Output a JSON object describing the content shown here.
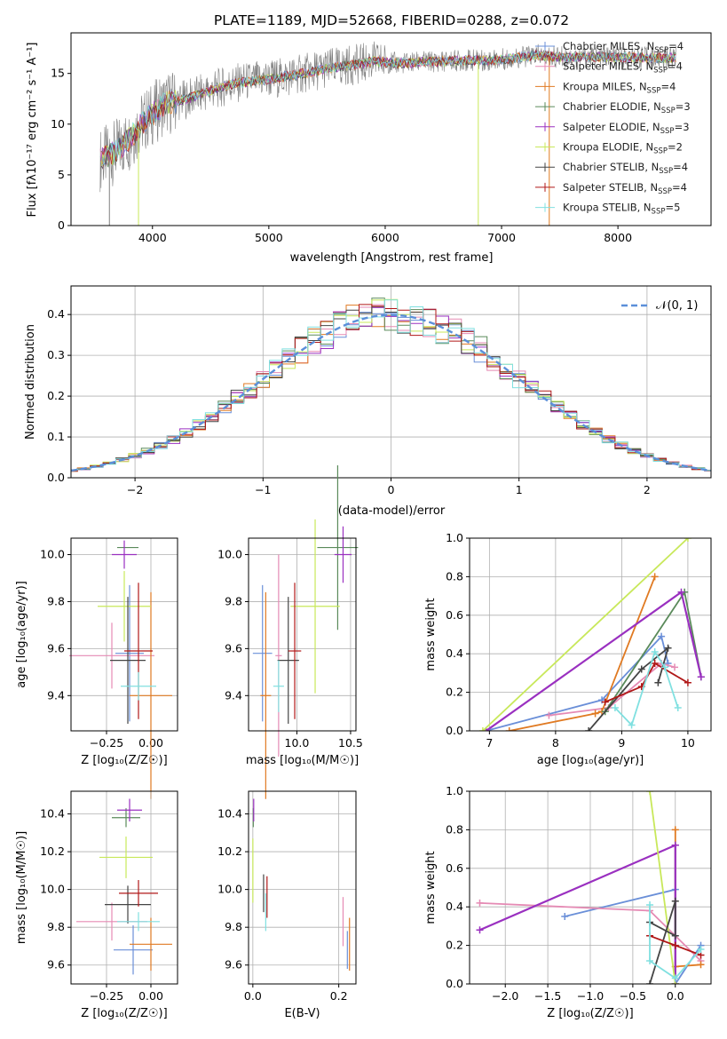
{
  "title": "PLATE=1189, MJD=52668, FIBERID=0288, z=0.072",
  "colors": {
    "Chabrier MILES": "#6a8fd8",
    "Salpeter MILES": "#e58ab4",
    "Kroupa MILES": "#e07a22",
    "Chabrier ELODIE": "#5a8a5a",
    "Salpeter ELODIE": "#9a30c0",
    "Kroupa ELODIE": "#c8e85a",
    "Chabrier STELIB": "#444444",
    "Salpeter STELIB": "#b01818",
    "Kroupa STELIB": "#80e0e0",
    "data": "#7f7f7f"
  },
  "chart_data": [
    {
      "type": "line",
      "name": "spectrum",
      "title": "PLATE=1189, MJD=52668, FIBERID=0288, z=0.072",
      "xlabel": "wavelength [Angstrom, rest frame]",
      "ylabel": "Flux [fλ10⁻¹⁷ erg cm⁻² s⁻¹ A⁻¹]",
      "xlim": [
        3300,
        8800
      ],
      "ylim": [
        0,
        19
      ],
      "xticks": [
        "4000",
        "5000",
        "6000",
        "7000",
        "8000"
      ],
      "yticks": [
        "0",
        "5",
        "10",
        "15"
      ],
      "legend": [
        {
          "label": "Chabrier MILES, N",
          "sub": "SSP",
          "tail": "=4"
        },
        {
          "label": "Salpeter MILES, N",
          "sub": "SSP",
          "tail": "=4"
        },
        {
          "label": "Kroupa MILES, N",
          "sub": "SSP",
          "tail": "=4"
        },
        {
          "label": "Chabrier ELODIE, N",
          "sub": "SSP",
          "tail": "=3"
        },
        {
          "label": "Salpeter ELODIE, N",
          "sub": "SSP",
          "tail": "=3"
        },
        {
          "label": "Kroupa ELODIE, N",
          "sub": "SSP",
          "tail": "=2"
        },
        {
          "label": "Chabrier STELIB, N",
          "sub": "SSP",
          "tail": "=4"
        },
        {
          "label": "Salpeter STELIB, N",
          "sub": "SSP",
          "tail": "=4"
        },
        {
          "label": "Kroupa STELIB, N",
          "sub": "SSP",
          "tail": "=5"
        }
      ],
      "continuum": [
        [
          3550,
          6.5
        ],
        [
          3650,
          7
        ],
        [
          3800,
          8.5
        ],
        [
          3900,
          10
        ],
        [
          4000,
          11
        ],
        [
          4100,
          12
        ],
        [
          4300,
          12.5
        ],
        [
          4500,
          13.3
        ],
        [
          4700,
          14
        ],
        [
          4900,
          14.3
        ],
        [
          5100,
          14.6
        ],
        [
          5300,
          15
        ],
        [
          5500,
          15.5
        ],
        [
          5700,
          15.8
        ],
        [
          5900,
          16.2
        ],
        [
          6100,
          16
        ],
        [
          6300,
          16.1
        ],
        [
          6500,
          16.2
        ],
        [
          6700,
          16.3
        ],
        [
          6900,
          16.3
        ],
        [
          7100,
          16.5
        ],
        [
          7300,
          16.8
        ],
        [
          7500,
          16.6
        ],
        [
          7800,
          16.6
        ],
        [
          8100,
          16.6
        ],
        [
          8400,
          16.5
        ],
        [
          8500,
          16.6
        ]
      ]
    },
    {
      "type": "line",
      "name": "residual-histogram",
      "xlabel": "(data-model)/error",
      "ylabel": "Normed distribution",
      "xlim": [
        -2.5,
        2.5
      ],
      "ylim": [
        0,
        0.47
      ],
      "xticks": [
        "−2",
        "−1",
        "0",
        "1",
        "2"
      ],
      "yticks": [
        "0.0",
        "0.1",
        "0.2",
        "0.3",
        "0.4"
      ],
      "legend": "𝒩(0, 1)",
      "series": [
        {
          "name": "𝒩(0, 1)",
          "mean": 0,
          "sigma": 1
        }
      ]
    },
    {
      "type": "scatter",
      "name": "age-vs-Z",
      "xlabel": "Z [log₁₀(Z/Z☉)]",
      "ylabel": "age  [log₁₀(age/yr)]",
      "xlim": [
        -0.45,
        0.15
      ],
      "ylim": [
        9.25,
        10.07
      ],
      "xticks": [
        -0.25,
        0.0
      ],
      "xticklabels": [
        "−0.25",
        "0.00"
      ],
      "yticks": [
        9.4,
        9.6,
        9.8,
        10.0
      ],
      "yticklabels": [
        "9.4",
        "9.6",
        "9.8",
        "10.0"
      ],
      "points": [
        {
          "model": "Chabrier MILES",
          "x": -0.12,
          "y": 9.58,
          "xerr": 0.08,
          "yerr": 0.29
        },
        {
          "model": "Salpeter MILES",
          "x": -0.22,
          "y": 9.57,
          "xerr": 0.24,
          "yerr": 0.14
        },
        {
          "model": "Kroupa MILES",
          "x": 0.0,
          "y": 9.4,
          "xerr": 0.12,
          "yerr": 0.44
        },
        {
          "model": "Chabrier ELODIE",
          "x": -0.13,
          "y": 10.03,
          "xerr": 0.06,
          "yerr": 0.0
        },
        {
          "model": "Salpeter ELODIE",
          "x": -0.15,
          "y": 10.0,
          "xerr": 0.07,
          "yerr": 0.06
        },
        {
          "model": "Kroupa ELODIE",
          "x": -0.15,
          "y": 9.78,
          "xerr": 0.15,
          "yerr": 0.15
        },
        {
          "model": "Chabrier STELIB",
          "x": -0.13,
          "y": 9.55,
          "xerr": 0.1,
          "yerr": 0.27
        },
        {
          "model": "Salpeter STELIB",
          "x": -0.07,
          "y": 9.59,
          "xerr": 0.08,
          "yerr": 0.29
        },
        {
          "model": "Kroupa STELIB",
          "x": -0.07,
          "y": 9.44,
          "xerr": 0.1,
          "yerr": 0.06
        }
      ]
    },
    {
      "type": "scatter",
      "name": "age-vs-mass",
      "xlabel": "mass [log₁₀(M/M☉)]",
      "xlim": [
        9.55,
        10.55
      ],
      "ylim": [
        9.25,
        10.07
      ],
      "xticks": [
        10.0,
        10.5
      ],
      "xticklabels": [
        "10.0",
        "10.5"
      ],
      "yticks": [
        9.4,
        9.6,
        9.8,
        10.0
      ],
      "yticklabels": [
        "9.4",
        "9.6",
        "9.8",
        "10.0"
      ],
      "points": [
        {
          "model": "Chabrier MILES",
          "x": 9.68,
          "y": 9.58,
          "xerr": 0.09,
          "yerr": 0.29
        },
        {
          "model": "Salpeter MILES",
          "x": 9.83,
          "y": 9.57,
          "xerr": 0.03,
          "yerr": 0.43
        },
        {
          "model": "Kroupa MILES",
          "x": 9.71,
          "y": 9.4,
          "xerr": 0.05,
          "yerr": 0.44
        },
        {
          "model": "Chabrier ELODIE",
          "x": 10.38,
          "y": 10.03,
          "xerr": 0.19,
          "yerr": 0.35
        },
        {
          "model": "Salpeter ELODIE",
          "x": 10.43,
          "y": 10.0,
          "xerr": 0.08,
          "yerr": 0.12
        },
        {
          "model": "Kroupa ELODIE",
          "x": 10.17,
          "y": 9.78,
          "xerr": 0.23,
          "yerr": 0.37
        },
        {
          "model": "Chabrier STELIB",
          "x": 9.92,
          "y": 9.55,
          "xerr": 0.1,
          "yerr": 0.27
        },
        {
          "model": "Salpeter STELIB",
          "x": 9.98,
          "y": 9.59,
          "xerr": 0.06,
          "yerr": 0.29
        },
        {
          "model": "Kroupa STELIB",
          "x": 9.83,
          "y": 9.44,
          "xerr": 0.05,
          "yerr": 0.11
        }
      ]
    },
    {
      "type": "line",
      "name": "mass-weight-vs-age",
      "xlabel": "age  [log₁₀(age/yr)]",
      "ylabel": "mass weight",
      "xlim": [
        6.7,
        10.35
      ],
      "ylim": [
        0,
        1
      ],
      "xticks": [
        7,
        8,
        9,
        10
      ],
      "xticklabels": [
        "7",
        "8",
        "9",
        "10"
      ],
      "yticks": [
        0,
        0.2,
        0.4,
        0.6,
        0.8,
        1.0
      ],
      "yticklabels": [
        "0.0",
        "0.2",
        "0.4",
        "0.6",
        "0.8",
        "1.0"
      ],
      "series": [
        {
          "model": "Chabrier MILES",
          "points": [
            [
              6.95,
              0
            ],
            [
              8.7,
              0.16
            ],
            [
              9.6,
              0.49
            ],
            [
              9.7,
              0.35
            ]
          ]
        },
        {
          "model": "Salpeter MILES",
          "points": [
            [
              7.9,
              0.08
            ],
            [
              8.8,
              0.12
            ],
            [
              9.6,
              0.35
            ],
            [
              9.8,
              0.33
            ]
          ]
        },
        {
          "model": "Kroupa MILES",
          "points": [
            [
              7.3,
              0
            ],
            [
              8.6,
              0.09
            ],
            [
              8.7,
              0.1
            ],
            [
              9.5,
              0.8
            ]
          ]
        },
        {
          "model": "Chabrier ELODIE",
          "points": [
            [
              8.75,
              0.1
            ],
            [
              9.95,
              0.72
            ],
            [
              10.2,
              0.28
            ]
          ]
        },
        {
          "model": "Salpeter ELODIE",
          "points": [
            [
              6.95,
              0
            ],
            [
              9.9,
              0.72
            ],
            [
              10.2,
              0.28
            ]
          ]
        },
        {
          "model": "Kroupa ELODIE",
          "points": [
            [
              6.9,
              0
            ],
            [
              10.0,
              1.0
            ]
          ]
        },
        {
          "model": "Chabrier STELIB",
          "points": [
            [
              8.5,
              0
            ],
            [
              9.3,
              0.32
            ],
            [
              9.7,
              0.43
            ],
            [
              9.55,
              0.25
            ]
          ]
        },
        {
          "model": "Salpeter STELIB",
          "points": [
            [
              8.75,
              0.15
            ],
            [
              9.3,
              0.23
            ],
            [
              9.5,
              0.35
            ],
            [
              10.0,
              0.25
            ]
          ]
        },
        {
          "model": "Kroupa STELIB",
          "points": [
            [
              8.9,
              0.12
            ],
            [
              9.15,
              0.03
            ],
            [
              9.5,
              0.41
            ],
            [
              9.65,
              0.33
            ],
            [
              9.85,
              0.12
            ]
          ]
        }
      ]
    },
    {
      "type": "scatter",
      "name": "mass-vs-Z",
      "xlabel": "Z [log₁₀(Z/Z☉)]",
      "ylabel": "mass [log₁₀(M/M☉)]",
      "xlim": [
        -0.45,
        0.15
      ],
      "ylim": [
        9.5,
        10.52
      ],
      "xticks": [
        -0.25,
        0.0
      ],
      "xticklabels": [
        "−0.25",
        "0.00"
      ],
      "yticks": [
        9.6,
        9.8,
        10.0,
        10.2,
        10.4
      ],
      "yticklabels": [
        "9.6",
        "9.8",
        "10.0",
        "10.2",
        "10.4"
      ],
      "points": [
        {
          "model": "Chabrier MILES",
          "x": -0.1,
          "y": 9.68,
          "xerr": 0.11,
          "yerr": 0.13
        },
        {
          "model": "Salpeter MILES",
          "x": -0.22,
          "y": 9.83,
          "xerr": 0.2,
          "yerr": 0.1
        },
        {
          "model": "Kroupa MILES",
          "x": 0.0,
          "y": 9.71,
          "xerr": 0.12,
          "yerr": 0.14
        },
        {
          "model": "Chabrier ELODIE",
          "x": -0.14,
          "y": 10.38,
          "xerr": 0.08,
          "yerr": 0.05
        },
        {
          "model": "Salpeter ELODIE",
          "x": -0.12,
          "y": 10.42,
          "xerr": 0.07,
          "yerr": 0.06
        },
        {
          "model": "Kroupa ELODIE",
          "x": -0.14,
          "y": 10.17,
          "xerr": 0.15,
          "yerr": 0.11
        },
        {
          "model": "Chabrier STELIB",
          "x": -0.13,
          "y": 9.92,
          "xerr": 0.13,
          "yerr": 0.1
        },
        {
          "model": "Salpeter STELIB",
          "x": -0.07,
          "y": 9.98,
          "xerr": 0.11,
          "yerr": 0.07
        },
        {
          "model": "Kroupa STELIB",
          "x": -0.07,
          "y": 9.83,
          "xerr": 0.12,
          "yerr": 0.05
        }
      ]
    },
    {
      "type": "scatter",
      "name": "mass-vs-EBV",
      "xlabel": "E(B-V)",
      "xlim": [
        -0.01,
        0.24
      ],
      "ylim": [
        9.5,
        10.52
      ],
      "xticks": [
        0.0,
        0.2
      ],
      "xticklabels": [
        "0.0",
        "0.2"
      ],
      "yticks": [
        9.6,
        9.8,
        10.0,
        10.2,
        10.4
      ],
      "yticklabels": [
        "9.6",
        "9.8",
        "10.0",
        "10.2",
        "10.4"
      ],
      "points": [
        {
          "model": "Chabrier MILES",
          "x": 0.22,
          "y": 9.68,
          "xerr": 0,
          "yerr": 0.1
        },
        {
          "model": "Salpeter MILES",
          "x": 0.21,
          "y": 9.83,
          "xerr": 0,
          "yerr": 0.13
        },
        {
          "model": "Kroupa MILES",
          "x": 0.225,
          "y": 9.71,
          "xerr": 0,
          "yerr": 0.14
        },
        {
          "model": "Chabrier ELODIE",
          "x": 0.001,
          "y": 10.38,
          "xerr": 0,
          "yerr": 0.05
        },
        {
          "model": "Salpeter ELODIE",
          "x": 0.002,
          "y": 10.42,
          "xerr": 0,
          "yerr": 0.06
        },
        {
          "model": "Kroupa ELODIE",
          "x": 0.0,
          "y": 10.1,
          "xerr": 0,
          "yerr": 0.17
        },
        {
          "model": "Chabrier STELIB",
          "x": 0.025,
          "y": 9.98,
          "xerr": 0,
          "yerr": 0.1
        },
        {
          "model": "Salpeter STELIB",
          "x": 0.033,
          "y": 9.96,
          "xerr": 0,
          "yerr": 0.11
        },
        {
          "model": "Kroupa STELIB",
          "x": 0.03,
          "y": 9.88,
          "xerr": 0,
          "yerr": 0.1
        }
      ]
    },
    {
      "type": "line",
      "name": "mass-weight-vs-Z",
      "xlabel": "Z [log₁₀(Z/Z☉)]",
      "ylabel": "mass weight",
      "xlim": [
        -2.42,
        0.42
      ],
      "ylim": [
        0,
        1
      ],
      "xticks": [
        -2,
        -1.5,
        -1,
        -0.5,
        0
      ],
      "xticklabels": [
        "−2.0",
        "−1.5",
        "−1.0",
        "−0.5",
        "0.0"
      ],
      "yticks": [
        0,
        0.2,
        0.4,
        0.6,
        0.8,
        1.0
      ],
      "yticklabels": [
        "0.0",
        "0.2",
        "0.4",
        "0.6",
        "0.8",
        "1.0"
      ],
      "series": [
        {
          "model": "Chabrier MILES",
          "points": [
            [
              -1.3,
              0.35
            ],
            [
              0.0,
              0.49
            ],
            [
              0.0,
              0.0
            ],
            [
              0.3,
              0.2
            ]
          ]
        },
        {
          "model": "Salpeter MILES",
          "points": [
            [
              -2.3,
              0.42
            ],
            [
              -0.3,
              0.38
            ],
            [
              0.3,
              0.12
            ]
          ]
        },
        {
          "model": "Kroupa MILES",
          "points": [
            [
              0.0,
              0.8
            ],
            [
              0.0,
              0.09
            ],
            [
              0.3,
              0.1
            ]
          ]
        },
        {
          "model": "Chabrier ELODIE",
          "points": [
            [
              0.0,
              0.0
            ],
            [
              0.0,
              0.72
            ]
          ]
        },
        {
          "model": "Salpeter ELODIE",
          "points": [
            [
              -2.3,
              0.28
            ],
            [
              0.0,
              0.72
            ],
            [
              0.0,
              0.0
            ]
          ]
        },
        {
          "model": "Kroupa ELODIE",
          "points": [
            [
              -0.3,
              1.0
            ],
            [
              0.0,
              0.0
            ]
          ]
        },
        {
          "model": "Chabrier STELIB",
          "points": [
            [
              -0.3,
              0.0
            ],
            [
              0.0,
              0.43
            ],
            [
              0.0,
              0.25
            ],
            [
              -0.3,
              0.32
            ]
          ]
        },
        {
          "model": "Salpeter STELIB",
          "points": [
            [
              -0.3,
              0.25
            ],
            [
              0.0,
              0.2
            ],
            [
              0.3,
              0.15
            ]
          ]
        },
        {
          "model": "Kroupa STELIB",
          "points": [
            [
              -0.3,
              0.41
            ],
            [
              -0.3,
              0.12
            ],
            [
              0.0,
              0.03
            ],
            [
              0.3,
              0.18
            ]
          ]
        }
      ]
    }
  ]
}
